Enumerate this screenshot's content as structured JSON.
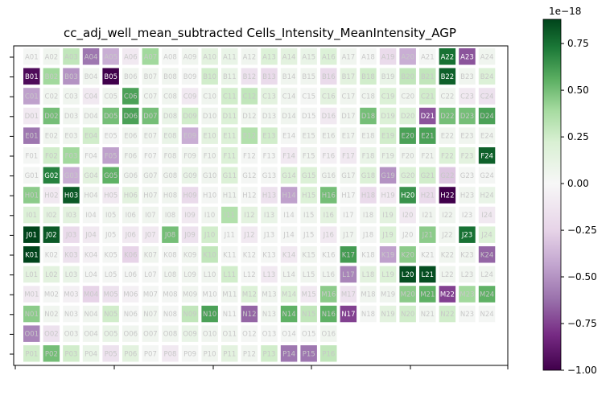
{
  "chart_data": {
    "type": "heatmap",
    "title": "cc_adj_well_mean_subtracted Cells_Intensity_MeanIntensity_AGP",
    "rows": [
      "A",
      "B",
      "C",
      "D",
      "E",
      "F",
      "G",
      "H",
      "I",
      "J",
      "K",
      "L",
      "M",
      "N",
      "O",
      "P"
    ],
    "columns": [
      "01",
      "02",
      "03",
      "04",
      "05",
      "06",
      "07",
      "08",
      "09",
      "10",
      "11",
      "12",
      "13",
      "14",
      "15",
      "16",
      "17",
      "18",
      "19",
      "20",
      "21",
      "22",
      "23",
      "24"
    ],
    "colormap": "PRGn",
    "vmin": -1.0,
    "vmax": 0.88,
    "colorbar": {
      "ticks": [
        0.75,
        0.5,
        0.25,
        0.0,
        -0.25,
        -0.5,
        -0.75,
        -1.0
      ],
      "tick_labels": [
        "0.75",
        "0.50",
        "0.25",
        "0.00",
        "−0.25",
        "−0.50",
        "−0.75",
        "−1.00"
      ],
      "offset_label": "1e−18"
    },
    "values": [
      [
        0.02,
        0.05,
        0.3,
        -0.6,
        -0.4,
        -0.1,
        0.4,
        0.02,
        0.05,
        0.15,
        0.1,
        0.05,
        0.2,
        0.15,
        0.1,
        0.2,
        0.05,
        0.02,
        -0.2,
        -0.4,
        0.02,
        0.75,
        -0.7,
        0.05
      ],
      [
        -0.95,
        0.4,
        -0.5,
        0.05,
        -1.0,
        0.05,
        0.05,
        0.05,
        0.02,
        0.25,
        0.1,
        -0.15,
        -0.2,
        0.05,
        0.05,
        -0.2,
        0.15,
        0.25,
        0.1,
        0.3,
        0.3,
        0.8,
        0.05,
        0.2
      ],
      [
        -0.45,
        0.05,
        0.05,
        -0.1,
        0.05,
        0.6,
        0.05,
        0.05,
        -0.1,
        0.05,
        0.25,
        0.3,
        0.15,
        0.05,
        0.02,
        0.15,
        0.05,
        0.05,
        0.2,
        0.05,
        0.25,
        0.05,
        -0.1,
        -0.15
      ],
      [
        -0.1,
        0.5,
        0.05,
        0.05,
        0.5,
        0.6,
        0.5,
        0.1,
        0.25,
        0.05,
        0.2,
        0.05,
        0.05,
        0.05,
        0.02,
        -0.1,
        0.05,
        0.5,
        0.2,
        0.2,
        -0.7,
        0.5,
        0.5,
        0.6
      ],
      [
        -0.6,
        0.05,
        0.05,
        0.25,
        0.02,
        0.05,
        0.05,
        0.1,
        -0.4,
        0.15,
        0.2,
        0.35,
        0.25,
        0.02,
        0.05,
        0.05,
        0.05,
        0.05,
        0.25,
        0.6,
        0.6,
        0.05,
        0.05,
        0.05
      ],
      [
        0.02,
        0.25,
        0.4,
        0.02,
        -0.45,
        0.05,
        0.02,
        0.05,
        0.05,
        0.05,
        0.2,
        0.02,
        0.02,
        -0.1,
        0.05,
        -0.05,
        -0.1,
        0.1,
        0.1,
        0.05,
        0.05,
        0.2,
        0.15,
        0.8
      ],
      [
        0.02,
        0.7,
        -0.4,
        0.15,
        0.55,
        0.05,
        0.05,
        0.05,
        0.1,
        0.05,
        0.2,
        0.02,
        0.02,
        0.2,
        0.2,
        0.05,
        0.05,
        0.2,
        -0.5,
        0.2,
        0.25,
        -0.3,
        0.02,
        0.02
      ],
      [
        0.45,
        -0.1,
        0.82,
        0.05,
        -0.1,
        0.15,
        0.05,
        0.05,
        -0.2,
        0.02,
        0.05,
        0.02,
        -0.15,
        -0.45,
        0.2,
        0.5,
        0.02,
        -0.2,
        -0.1,
        0.65,
        -0.2,
        -1.0,
        0.05,
        0.1
      ],
      [
        0.2,
        0.15,
        0.15,
        0.02,
        0.05,
        0.05,
        0.05,
        0.05,
        -0.1,
        0.05,
        0.35,
        0.15,
        0.1,
        0.02,
        0.05,
        0.15,
        0.02,
        0.05,
        0.15,
        -0.1,
        0.05,
        0.05,
        0.02,
        -0.1
      ],
      [
        0.88,
        0.82,
        -0.2,
        -0.1,
        0.02,
        -0.1,
        -0.1,
        0.5,
        -0.15,
        0.25,
        0.02,
        -0.1,
        0.02,
        0.02,
        0.02,
        -0.1,
        0.05,
        0.02,
        0.2,
        0.02,
        0.45,
        0.05,
        0.75,
        0.2
      ],
      [
        0.88,
        0.02,
        -0.15,
        -0.05,
        0.02,
        -0.25,
        0.05,
        0.02,
        0.05,
        0.3,
        0.02,
        0.02,
        0.02,
        -0.1,
        0.05,
        0.02,
        0.62,
        0.02,
        -0.45,
        0.45,
        0.02,
        0.05,
        0.05,
        -0.65
      ],
      [
        0.15,
        0.15,
        0.1,
        0.02,
        0.02,
        0.02,
        0.02,
        0.05,
        0.05,
        0.05,
        0.25,
        0.02,
        -0.1,
        0.05,
        0.05,
        0.05,
        -0.55,
        0.15,
        0.2,
        0.85,
        0.85,
        0.05,
        0.05,
        0.05
      ],
      [
        -0.1,
        0.02,
        -0.05,
        -0.25,
        -0.15,
        -0.05,
        0.02,
        0.02,
        0.05,
        0.02,
        0.05,
        0.2,
        0.05,
        0.2,
        -0.1,
        0.45,
        -0.15,
        0.05,
        0.05,
        0.45,
        0.55,
        -0.75,
        0.4,
        0.55
      ],
      [
        0.45,
        0.05,
        0.02,
        0.05,
        0.25,
        0.02,
        0.05,
        0.02,
        0.3,
        0.6,
        0.02,
        -0.65,
        0.05,
        0.55,
        0.3,
        0.55,
        -0.75,
        0.02,
        0.15,
        0.25,
        0.05,
        0.25,
        0.02,
        0.02
      ],
      [
        -0.55,
        -0.15,
        0.05,
        0.05,
        0.1,
        0.05,
        0.05,
        0.05,
        0.1,
        0.05,
        0.05,
        0.02,
        0.02,
        0.02,
        0.02,
        0.05,
        null,
        null,
        null,
        null,
        null,
        null,
        null,
        null
      ],
      [
        0.25,
        0.5,
        0.25,
        0.1,
        -0.15,
        0.15,
        0.02,
        -0.1,
        0.02,
        0.05,
        0.15,
        0.05,
        0.25,
        -0.6,
        -0.6,
        0.3,
        null,
        null,
        null,
        null,
        null,
        null,
        null,
        null
      ]
    ]
  }
}
